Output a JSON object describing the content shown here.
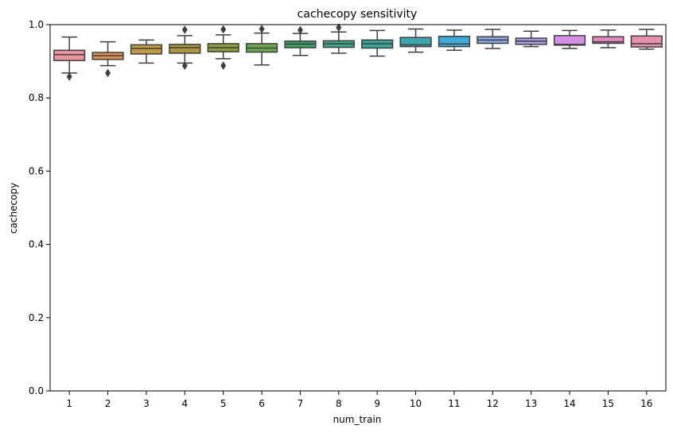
{
  "chart_data": {
    "type": "box",
    "title": "cachecopy sensitivity",
    "xlabel": "num_train",
    "ylabel": "cachecopy",
    "ylim": [
      0.0,
      1.0
    ],
    "yticks": [
      "0.0",
      "0.2",
      "0.4",
      "0.6",
      "0.8",
      "1.0"
    ],
    "categories": [
      "1",
      "2",
      "3",
      "4",
      "5",
      "6",
      "7",
      "8",
      "9",
      "10",
      "11",
      "12",
      "13",
      "14",
      "15",
      "16"
    ],
    "colors": [
      "#e8939d",
      "#dd8f52",
      "#bf9b42",
      "#a9983f",
      "#8f9c3e",
      "#6aa84f",
      "#3aa56a",
      "#3aa88a",
      "#3aa59b",
      "#3aa6ad",
      "#3daad8",
      "#8aa9e3",
      "#b09ae7",
      "#d690e6",
      "#e489c6",
      "#e88fab"
    ],
    "boxes": [
      {
        "whislo": 0.868,
        "q1": 0.902,
        "med": 0.918,
        "q3": 0.93,
        "whishi": 0.966,
        "fliers": [
          0.858
        ]
      },
      {
        "whislo": 0.888,
        "q1": 0.905,
        "med": 0.915,
        "q3": 0.924,
        "whishi": 0.953,
        "fliers": [
          0.868
        ]
      },
      {
        "whislo": 0.895,
        "q1": 0.92,
        "med": 0.935,
        "q3": 0.945,
        "whishi": 0.958,
        "fliers": []
      },
      {
        "whislo": 0.895,
        "q1": 0.922,
        "med": 0.937,
        "q3": 0.946,
        "whishi": 0.97,
        "fliers": [
          0.986,
          0.888
        ]
      },
      {
        "whislo": 0.907,
        "q1": 0.926,
        "med": 0.937,
        "q3": 0.948,
        "whishi": 0.972,
        "fliers": [
          0.987,
          0.888
        ]
      },
      {
        "whislo": 0.89,
        "q1": 0.925,
        "med": 0.936,
        "q3": 0.948,
        "whishi": 0.977,
        "fliers": [
          0.988
        ]
      },
      {
        "whislo": 0.916,
        "q1": 0.937,
        "med": 0.947,
        "q3": 0.955,
        "whishi": 0.976,
        "fliers": [
          0.985
        ]
      },
      {
        "whislo": 0.922,
        "q1": 0.938,
        "med": 0.948,
        "q3": 0.956,
        "whishi": 0.98,
        "fliers": [
          0.992
        ]
      },
      {
        "whislo": 0.914,
        "q1": 0.936,
        "med": 0.948,
        "q3": 0.958,
        "whishi": 0.984,
        "fliers": []
      },
      {
        "whislo": 0.925,
        "q1": 0.94,
        "med": 0.945,
        "q3": 0.965,
        "whishi": 0.988,
        "fliers": []
      },
      {
        "whislo": 0.93,
        "q1": 0.94,
        "med": 0.947,
        "q3": 0.968,
        "whishi": 0.985,
        "fliers": []
      },
      {
        "whislo": 0.935,
        "q1": 0.949,
        "med": 0.958,
        "q3": 0.967,
        "whishi": 0.987,
        "fliers": []
      },
      {
        "whislo": 0.94,
        "q1": 0.946,
        "med": 0.955,
        "q3": 0.963,
        "whishi": 0.982,
        "fliers": []
      },
      {
        "whislo": 0.935,
        "q1": 0.944,
        "med": 0.946,
        "q3": 0.97,
        "whishi": 0.984,
        "fliers": []
      },
      {
        "whislo": 0.937,
        "q1": 0.949,
        "med": 0.953,
        "q3": 0.967,
        "whishi": 0.985,
        "fliers": []
      },
      {
        "whislo": 0.933,
        "q1": 0.939,
        "med": 0.948,
        "q3": 0.969,
        "whishi": 0.987,
        "fliers": []
      }
    ]
  }
}
